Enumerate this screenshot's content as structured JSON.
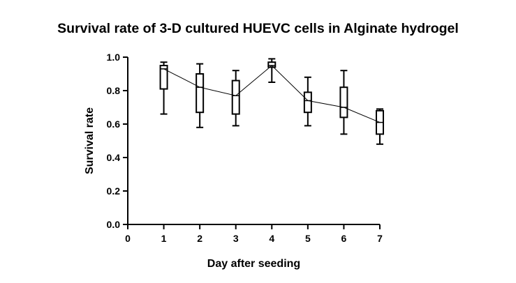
{
  "chart_data": {
    "type": "box",
    "title": "Survival rate of 3-D cultured HUEVC cells in Alginate hydrogel",
    "xlabel": "Day after seeding",
    "ylabel": "Survival rate",
    "xlim": [
      0,
      7
    ],
    "ylim": [
      0.0,
      1.0
    ],
    "x_ticks": [
      "0",
      "1",
      "2",
      "3",
      "4",
      "5",
      "6",
      "7"
    ],
    "y_ticks": [
      "0.0",
      "0.2",
      "0.4",
      "0.6",
      "0.8",
      "1.0"
    ],
    "grid": false,
    "boxes": [
      {
        "x": 1,
        "min": 0.66,
        "q1": 0.81,
        "median": 0.93,
        "q3": 0.95,
        "max": 0.97
      },
      {
        "x": 2,
        "min": 0.58,
        "q1": 0.67,
        "median": 0.82,
        "q3": 0.9,
        "max": 0.96
      },
      {
        "x": 3,
        "min": 0.59,
        "q1": 0.66,
        "median": 0.77,
        "q3": 0.86,
        "max": 0.92
      },
      {
        "x": 4,
        "min": 0.85,
        "q1": 0.94,
        "median": 0.95,
        "q3": 0.97,
        "max": 0.99
      },
      {
        "x": 5,
        "min": 0.59,
        "q1": 0.67,
        "median": 0.74,
        "q3": 0.79,
        "max": 0.88
      },
      {
        "x": 6,
        "min": 0.54,
        "q1": 0.64,
        "median": 0.7,
        "q3": 0.82,
        "max": 0.92
      },
      {
        "x": 7,
        "min": 0.48,
        "q1": 0.54,
        "median": 0.61,
        "q3": 0.68,
        "max": 0.69
      }
    ],
    "median_line": true
  }
}
